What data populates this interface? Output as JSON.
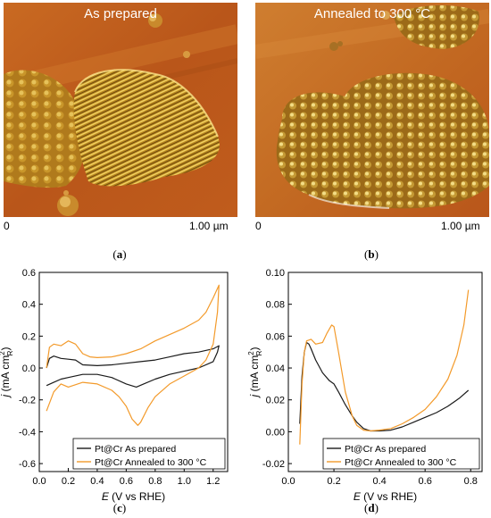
{
  "panels": {
    "a": {
      "label": "a",
      "image_title": "As prepared",
      "scale_start": "0",
      "scale_end": "1.00 µm"
    },
    "b": {
      "label": "b",
      "image_title": "Annealed to 300 °C",
      "scale_start": "0",
      "scale_end": "1.00 µm"
    },
    "c": {
      "label": "c"
    },
    "d": {
      "label": "d"
    }
  },
  "colors": {
    "as_prepared": "#1a1a1a",
    "annealed": "#f39a2a",
    "afm_base": "#c0601e"
  },
  "chart_data": [
    {
      "type": "line",
      "panel": "c",
      "xlabel_main": "E",
      "xlabel_rest": " (V vs RHE)",
      "ylabel_main": "j",
      "ylabel_rest": " (mA cm",
      "ylabel_sup": "2",
      "ylabel_sub": "R",
      "ylabel_close": ")",
      "xlim": [
        0.0,
        1.3
      ],
      "ylim": [
        -0.65,
        0.6
      ],
      "xticks": [
        0.0,
        0.2,
        0.4,
        0.6,
        0.8,
        1.0,
        1.2
      ],
      "xtick_labels": [
        "0.0",
        "0.2",
        "0.4",
        "0.6",
        "0.8",
        "1.0",
        "1.2"
      ],
      "yticks": [
        0.6,
        0.4,
        0.2,
        0.0,
        -0.2,
        -0.4,
        -0.6
      ],
      "ytick_labels": [
        "0.6",
        "0.4",
        "0.2",
        "0.0",
        "-0.2",
        "-0.4",
        "-0.6"
      ],
      "legend_position": "bottom-right",
      "series": [
        {
          "name": "Pt@Cr As prepared",
          "color_key": "as_prepared",
          "points": [
            [
              0.05,
              0.0
            ],
            [
              0.07,
              0.06
            ],
            [
              0.1,
              0.075
            ],
            [
              0.15,
              0.06
            ],
            [
              0.2,
              0.055
            ],
            [
              0.25,
              0.05
            ],
            [
              0.3,
              0.02
            ],
            [
              0.4,
              0.015
            ],
            [
              0.5,
              0.02
            ],
            [
              0.6,
              0.03
            ],
            [
              0.7,
              0.04
            ],
            [
              0.8,
              0.05
            ],
            [
              0.9,
              0.07
            ],
            [
              1.0,
              0.09
            ],
            [
              1.1,
              0.1
            ],
            [
              1.2,
              0.12
            ],
            [
              1.24,
              0.14
            ],
            [
              1.23,
              0.1
            ],
            [
              1.2,
              0.04
            ],
            [
              1.1,
              0.0
            ],
            [
              1.0,
              -0.02
            ],
            [
              0.9,
              -0.04
            ],
            [
              0.8,
              -0.07
            ],
            [
              0.72,
              -0.1
            ],
            [
              0.67,
              -0.12
            ],
            [
              0.6,
              -0.1
            ],
            [
              0.5,
              -0.06
            ],
            [
              0.4,
              -0.04
            ],
            [
              0.3,
              -0.04
            ],
            [
              0.2,
              -0.06
            ],
            [
              0.15,
              -0.07
            ],
            [
              0.1,
              -0.09
            ],
            [
              0.05,
              -0.11
            ]
          ]
        },
        {
          "name": "Pt@Cr Annealed to 300 °C",
          "color_key": "annealed",
          "points": [
            [
              0.05,
              0.0
            ],
            [
              0.07,
              0.13
            ],
            [
              0.1,
              0.15
            ],
            [
              0.15,
              0.14
            ],
            [
              0.2,
              0.17
            ],
            [
              0.25,
              0.15
            ],
            [
              0.3,
              0.09
            ],
            [
              0.35,
              0.07
            ],
            [
              0.4,
              0.065
            ],
            [
              0.5,
              0.07
            ],
            [
              0.6,
              0.09
            ],
            [
              0.7,
              0.12
            ],
            [
              0.8,
              0.17
            ],
            [
              0.9,
              0.21
            ],
            [
              1.0,
              0.25
            ],
            [
              1.1,
              0.3
            ],
            [
              1.15,
              0.35
            ],
            [
              1.2,
              0.44
            ],
            [
              1.24,
              0.52
            ],
            [
              1.23,
              0.35
            ],
            [
              1.2,
              0.15
            ],
            [
              1.15,
              0.05
            ],
            [
              1.1,
              0.0
            ],
            [
              1.0,
              -0.05
            ],
            [
              0.9,
              -0.1
            ],
            [
              0.8,
              -0.18
            ],
            [
              0.75,
              -0.25
            ],
            [
              0.7,
              -0.34
            ],
            [
              0.68,
              -0.36
            ],
            [
              0.64,
              -0.32
            ],
            [
              0.6,
              -0.24
            ],
            [
              0.55,
              -0.18
            ],
            [
              0.5,
              -0.14
            ],
            [
              0.4,
              -0.1
            ],
            [
              0.3,
              -0.09
            ],
            [
              0.2,
              -0.12
            ],
            [
              0.15,
              -0.1
            ],
            [
              0.1,
              -0.15
            ],
            [
              0.05,
              -0.27
            ]
          ]
        }
      ]
    },
    {
      "type": "line",
      "panel": "d",
      "xlabel_main": "E",
      "xlabel_rest": " (V vs RHE)",
      "ylabel_main": "j",
      "ylabel_rest": " (mA cm",
      "ylabel_sup": "2",
      "ylabel_sub": "R",
      "ylabel_close": ")",
      "xlim": [
        0.0,
        0.85
      ],
      "ylim": [
        -0.025,
        0.1
      ],
      "xticks": [
        0.0,
        0.2,
        0.4,
        0.6,
        0.8
      ],
      "xtick_labels": [
        "0.0",
        "0.2",
        "0.4",
        "0.6",
        "0.8"
      ],
      "yticks": [
        0.1,
        0.08,
        0.06,
        0.04,
        0.02,
        0.0,
        -0.02
      ],
      "ytick_labels": [
        "0.10",
        "0.08",
        "0.06",
        "0.04",
        "0.02",
        "0.00",
        "-0.02"
      ],
      "legend_position": "bottom-right",
      "series": [
        {
          "name": "Pt@Cr As prepared",
          "color_key": "as_prepared",
          "points": [
            [
              0.05,
              0.005
            ],
            [
              0.06,
              0.035
            ],
            [
              0.07,
              0.05
            ],
            [
              0.08,
              0.056
            ],
            [
              0.09,
              0.055
            ],
            [
              0.1,
              0.052
            ],
            [
              0.12,
              0.045
            ],
            [
              0.15,
              0.037
            ],
            [
              0.18,
              0.032
            ],
            [
              0.2,
              0.03
            ],
            [
              0.22,
              0.025
            ],
            [
              0.25,
              0.017
            ],
            [
              0.28,
              0.01
            ],
            [
              0.3,
              0.006
            ],
            [
              0.33,
              0.002
            ],
            [
              0.36,
              0.0005
            ],
            [
              0.4,
              0.0005
            ],
            [
              0.45,
              0.001
            ],
            [
              0.5,
              0.003
            ],
            [
              0.55,
              0.006
            ],
            [
              0.6,
              0.009
            ],
            [
              0.65,
              0.012
            ],
            [
              0.7,
              0.016
            ],
            [
              0.75,
              0.021
            ],
            [
              0.79,
              0.026
            ]
          ]
        },
        {
          "name": "Pt@Cr Annealed to 300 °C",
          "color_key": "annealed",
          "points": [
            [
              0.05,
              -0.008
            ],
            [
              0.06,
              0.03
            ],
            [
              0.07,
              0.05
            ],
            [
              0.08,
              0.057
            ],
            [
              0.1,
              0.058
            ],
            [
              0.12,
              0.055
            ],
            [
              0.15,
              0.056
            ],
            [
              0.17,
              0.062
            ],
            [
              0.19,
              0.067
            ],
            [
              0.2,
              0.066
            ],
            [
              0.22,
              0.05
            ],
            [
              0.25,
              0.025
            ],
            [
              0.28,
              0.01
            ],
            [
              0.3,
              0.004
            ],
            [
              0.33,
              0.001
            ],
            [
              0.36,
              0.0005
            ],
            [
              0.4,
              0.001
            ],
            [
              0.45,
              0.002
            ],
            [
              0.5,
              0.005
            ],
            [
              0.55,
              0.009
            ],
            [
              0.6,
              0.014
            ],
            [
              0.65,
              0.022
            ],
            [
              0.7,
              0.033
            ],
            [
              0.74,
              0.048
            ],
            [
              0.77,
              0.067
            ],
            [
              0.79,
              0.089
            ]
          ]
        }
      ]
    }
  ]
}
